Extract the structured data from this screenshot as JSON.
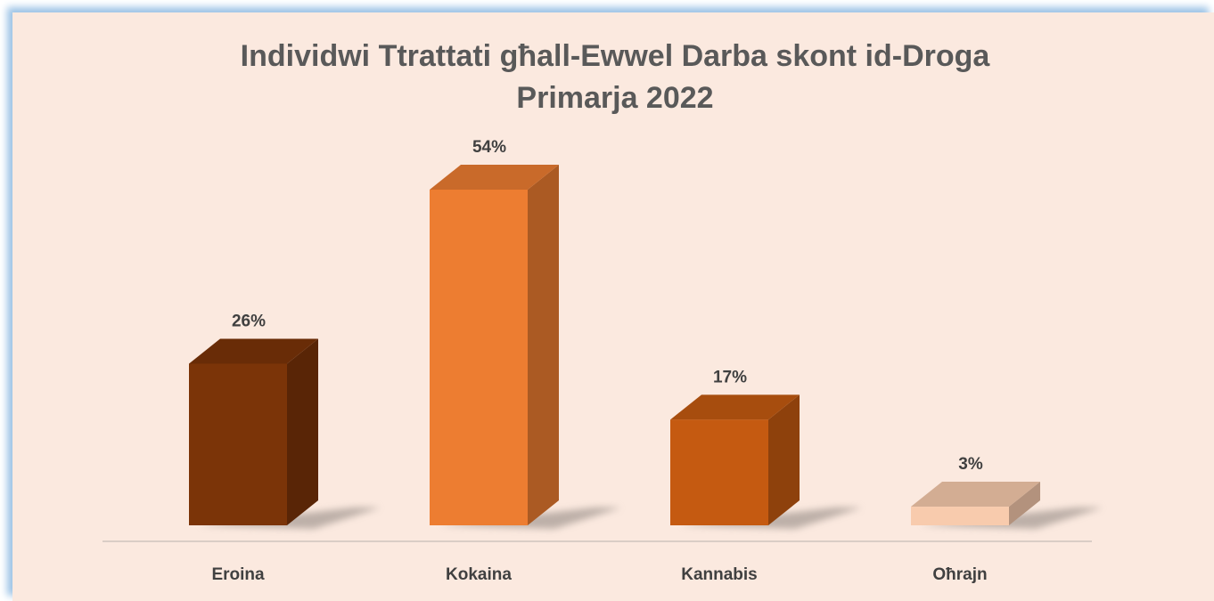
{
  "chart_data": {
    "type": "bar3d",
    "title": "Individwi Ttrattati għall-Ewwel Darba skont id-Droga Primarja 2022",
    "categories": [
      "Eroina",
      "Kokaina",
      "Kannabis",
      "Oħrajn"
    ],
    "values": [
      26,
      54,
      17,
      3
    ],
    "value_labels": [
      "26%",
      "54%",
      "17%",
      "3%"
    ],
    "colors": [
      "#7b3408",
      "#ed7d31",
      "#c55a11",
      "#f8cbad"
    ]
  }
}
